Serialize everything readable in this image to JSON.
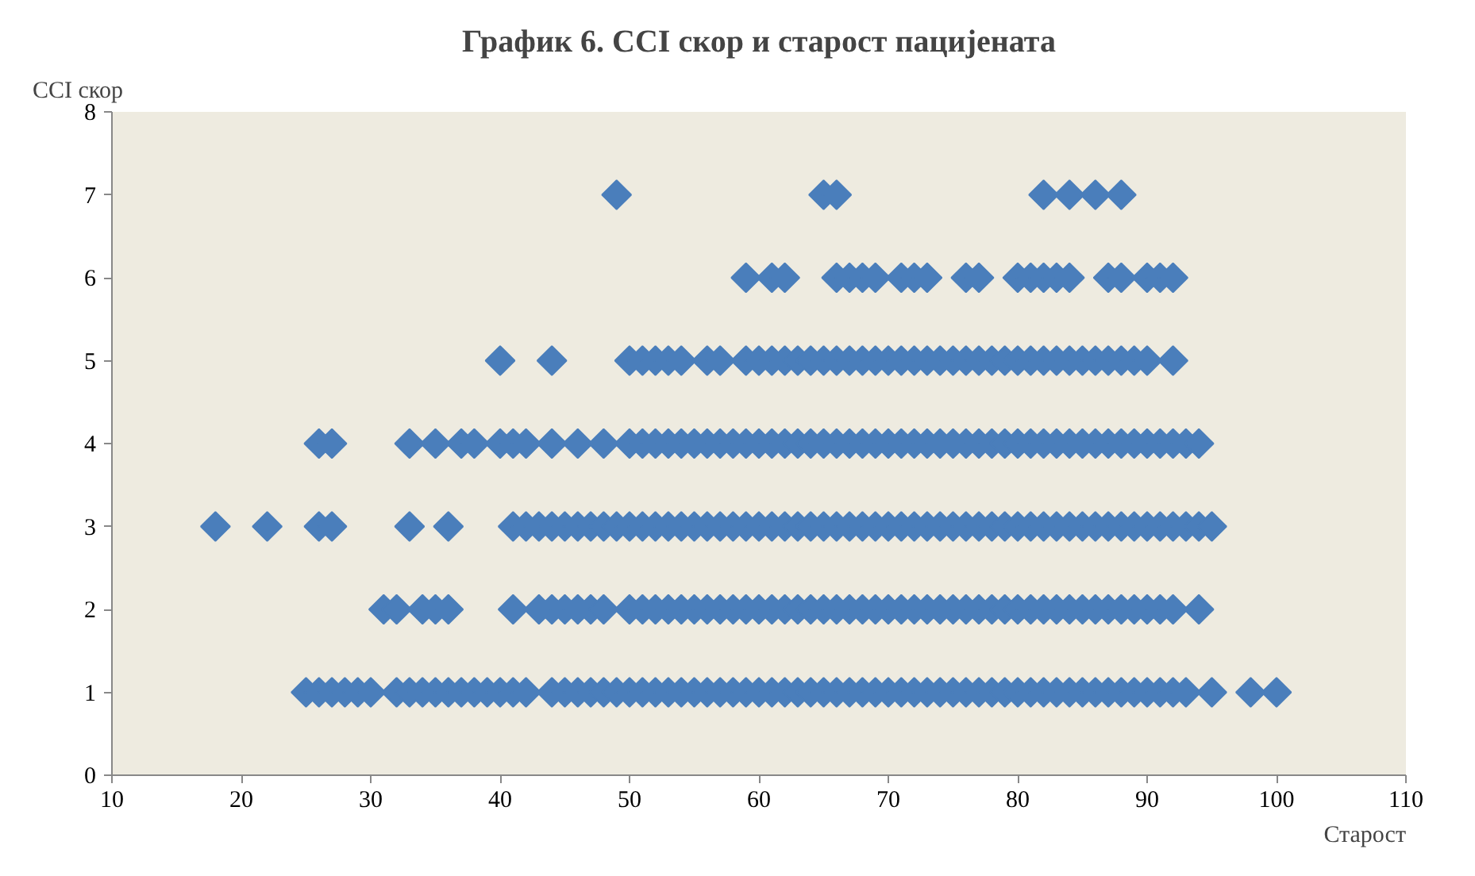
{
  "chart_data": {
    "type": "scatter",
    "title": "График 6. CCI скор и старост пацијената",
    "xlabel": "Старост",
    "ylabel": "CCI скор",
    "xlim": [
      10,
      110
    ],
    "xticks": [
      10,
      20,
      30,
      40,
      50,
      60,
      70,
      80,
      90,
      100,
      110
    ],
    "ylim": [
      0,
      8
    ],
    "yticks": [
      0,
      1,
      2,
      3,
      4,
      5,
      6,
      7,
      8
    ],
    "grid": false,
    "marker": "diamond",
    "series": [
      {
        "color": "#4a7ebb",
        "x": [
          25,
          26,
          27,
          28,
          29,
          30,
          32,
          33,
          34,
          35,
          36,
          37,
          38,
          39,
          40,
          41,
          42,
          44,
          45,
          46,
          47,
          48,
          49,
          50,
          51,
          52,
          53,
          54,
          55,
          56,
          57,
          58,
          59,
          60,
          61,
          62,
          63,
          64,
          65,
          66,
          67,
          68,
          69,
          70,
          71,
          72,
          73,
          74,
          75,
          76,
          77,
          78,
          79,
          80,
          81,
          82,
          83,
          84,
          85,
          86,
          87,
          88,
          89,
          90,
          91,
          92,
          93,
          95,
          98,
          100
        ],
        "values": [
          1,
          1,
          1,
          1,
          1,
          1,
          1,
          1,
          1,
          1,
          1,
          1,
          1,
          1,
          1,
          1,
          1,
          1,
          1,
          1,
          1,
          1,
          1,
          1,
          1,
          1,
          1,
          1,
          1,
          1,
          1,
          1,
          1,
          1,
          1,
          1,
          1,
          1,
          1,
          1,
          1,
          1,
          1,
          1,
          1,
          1,
          1,
          1,
          1,
          1,
          1,
          1,
          1,
          1,
          1,
          1,
          1,
          1,
          1,
          1,
          1,
          1,
          1,
          1,
          1,
          1,
          1,
          1,
          1,
          1
        ]
      },
      {
        "color": "#4a7ebb",
        "x": [
          31,
          32,
          34,
          35,
          36,
          41,
          43,
          44,
          45,
          46,
          47,
          48,
          50,
          51,
          52,
          53,
          54,
          55,
          56,
          57,
          58,
          59,
          60,
          61,
          62,
          63,
          64,
          65,
          66,
          67,
          68,
          69,
          70,
          71,
          72,
          73,
          74,
          75,
          76,
          77,
          78,
          79,
          80,
          81,
          82,
          83,
          84,
          85,
          86,
          87,
          88,
          89,
          90,
          91,
          92,
          94
        ],
        "values": [
          2,
          2,
          2,
          2,
          2,
          2,
          2,
          2,
          2,
          2,
          2,
          2,
          2,
          2,
          2,
          2,
          2,
          2,
          2,
          2,
          2,
          2,
          2,
          2,
          2,
          2,
          2,
          2,
          2,
          2,
          2,
          2,
          2,
          2,
          2,
          2,
          2,
          2,
          2,
          2,
          2,
          2,
          2,
          2,
          2,
          2,
          2,
          2,
          2,
          2,
          2,
          2,
          2,
          2,
          2,
          2
        ]
      },
      {
        "color": "#4a7ebb",
        "x": [
          18,
          22,
          26,
          27,
          33,
          36,
          41,
          42,
          43,
          44,
          45,
          46,
          47,
          48,
          49,
          50,
          51,
          52,
          53,
          54,
          55,
          56,
          57,
          58,
          59,
          60,
          61,
          62,
          63,
          64,
          65,
          66,
          67,
          68,
          69,
          70,
          71,
          72,
          73,
          74,
          75,
          76,
          77,
          78,
          79,
          80,
          81,
          82,
          83,
          84,
          85,
          86,
          87,
          88,
          89,
          90,
          91,
          92,
          93,
          94,
          95
        ],
        "values": [
          3,
          3,
          3,
          3,
          3,
          3,
          3,
          3,
          3,
          3,
          3,
          3,
          3,
          3,
          3,
          3,
          3,
          3,
          3,
          3,
          3,
          3,
          3,
          3,
          3,
          3,
          3,
          3,
          3,
          3,
          3,
          3,
          3,
          3,
          3,
          3,
          3,
          3,
          3,
          3,
          3,
          3,
          3,
          3,
          3,
          3,
          3,
          3,
          3,
          3,
          3,
          3,
          3,
          3,
          3,
          3,
          3,
          3,
          3,
          3,
          3
        ]
      },
      {
        "color": "#4a7ebb",
        "x": [
          26,
          27,
          33,
          35,
          37,
          38,
          40,
          41,
          42,
          44,
          46,
          48,
          50,
          51,
          52,
          53,
          54,
          55,
          56,
          57,
          58,
          59,
          60,
          61,
          62,
          63,
          64,
          65,
          66,
          67,
          68,
          69,
          70,
          71,
          72,
          73,
          74,
          75,
          76,
          77,
          78,
          79,
          80,
          81,
          82,
          83,
          84,
          85,
          86,
          87,
          88,
          89,
          90,
          91,
          92,
          93,
          94
        ],
        "values": [
          4,
          4,
          4,
          4,
          4,
          4,
          4,
          4,
          4,
          4,
          4,
          4,
          4,
          4,
          4,
          4,
          4,
          4,
          4,
          4,
          4,
          4,
          4,
          4,
          4,
          4,
          4,
          4,
          4,
          4,
          4,
          4,
          4,
          4,
          4,
          4,
          4,
          4,
          4,
          4,
          4,
          4,
          4,
          4,
          4,
          4,
          4,
          4,
          4,
          4,
          4,
          4,
          4,
          4,
          4,
          4,
          4
        ]
      },
      {
        "color": "#4a7ebb",
        "x": [
          40,
          44,
          50,
          51,
          52,
          53,
          54,
          56,
          57,
          59,
          60,
          61,
          62,
          63,
          64,
          65,
          66,
          67,
          68,
          69,
          70,
          71,
          72,
          73,
          74,
          75,
          76,
          77,
          78,
          79,
          80,
          81,
          82,
          83,
          84,
          85,
          86,
          87,
          88,
          89,
          90,
          92
        ],
        "values": [
          5,
          5,
          5,
          5,
          5,
          5,
          5,
          5,
          5,
          5,
          5,
          5,
          5,
          5,
          5,
          5,
          5,
          5,
          5,
          5,
          5,
          5,
          5,
          5,
          5,
          5,
          5,
          5,
          5,
          5,
          5,
          5,
          5,
          5,
          5,
          5,
          5,
          5,
          5,
          5,
          5,
          5
        ]
      },
      {
        "color": "#4a7ebb",
        "x": [
          59,
          61,
          62,
          66,
          67,
          68,
          69,
          71,
          72,
          73,
          76,
          77,
          80,
          81,
          82,
          83,
          84,
          87,
          88,
          90,
          91,
          92
        ],
        "values": [
          6,
          6,
          6,
          6,
          6,
          6,
          6,
          6,
          6,
          6,
          6,
          6,
          6,
          6,
          6,
          6,
          6,
          6,
          6,
          6,
          6,
          6
        ]
      },
      {
        "color": "#4a7ebb",
        "x": [
          49,
          65,
          66,
          82,
          84,
          86,
          88
        ],
        "values": [
          7,
          7,
          7,
          7,
          7,
          7,
          7
        ]
      }
    ]
  }
}
